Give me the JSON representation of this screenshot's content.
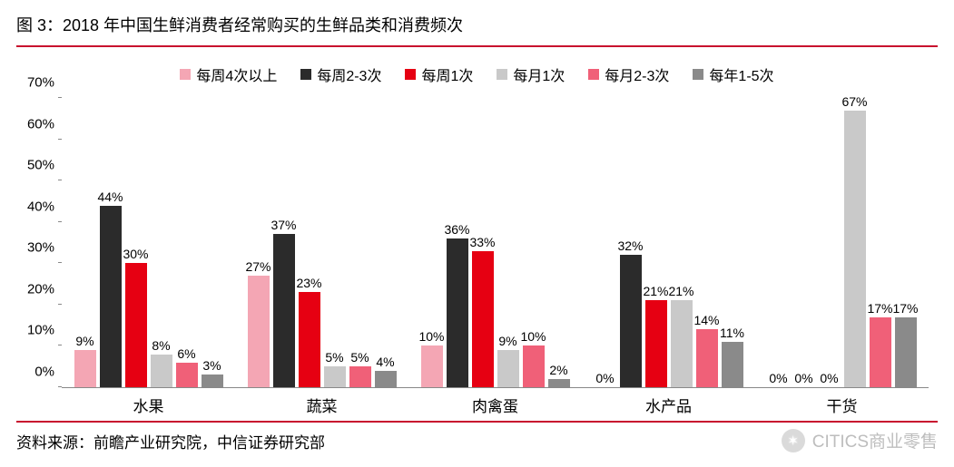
{
  "title": "图 3：2018 年中国生鲜消费者经常购买的生鲜品类和消费频次",
  "source_label": "资料来源：前瞻产业研究院，中信证券研究部",
  "watermark_text": "CITICS商业零售",
  "chart": {
    "type": "bar",
    "background_color": "#ffffff",
    "rule_color": "#c8102e",
    "axis_color": "#888888",
    "ymax": 70,
    "ytick_step": 10,
    "ytick_suffix": "%",
    "label_fontsize": 15,
    "title_fontsize": 18,
    "legend_fontsize": 16,
    "bar_label_fontsize": 14,
    "series": [
      {
        "label": "每周4次以上",
        "color": "#f4a6b4"
      },
      {
        "label": "每周2-3次",
        "color": "#2b2b2b"
      },
      {
        "label": "每周1次",
        "color": "#e60012"
      },
      {
        "label": "每月1次",
        "color": "#c9c9c9"
      },
      {
        "label": "每月2-3次",
        "color": "#f06078"
      },
      {
        "label": "每年1-5次",
        "color": "#8a8a8a"
      }
    ],
    "categories": [
      "水果",
      "蔬菜",
      "肉禽蛋",
      "水产品",
      "干货"
    ],
    "values": [
      [
        9,
        44,
        30,
        8,
        6,
        3
      ],
      [
        27,
        37,
        23,
        5,
        5,
        4
      ],
      [
        10,
        36,
        33,
        9,
        10,
        2
      ],
      [
        0,
        32,
        21,
        21,
        14,
        11
      ],
      [
        0,
        0,
        0,
        67,
        17,
        17
      ]
    ]
  }
}
